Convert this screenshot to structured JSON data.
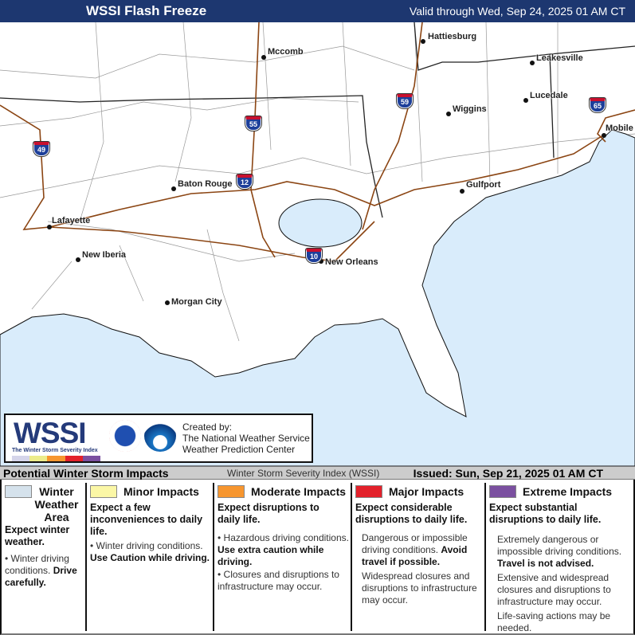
{
  "header": {
    "title": "WSSI Flash Freeze",
    "valid": "Valid through Wed, Sep 24, 2025 01 AM CT",
    "color": "#1d3770"
  },
  "map": {
    "water_color": "#d9ecfb",
    "road_color": "#8b4513",
    "cities": [
      "Hattiesburg",
      "Mccomb",
      "Leakesville",
      "Lucedale",
      "Wiggins",
      "Mobile",
      "Baton Rouge",
      "Gulfport",
      "Lafayette",
      "New Iberia",
      "New Orleans",
      "Morgan City"
    ],
    "interstates": [
      "49",
      "55",
      "12",
      "59",
      "65",
      "10"
    ]
  },
  "logo": {
    "wordmark": "WSSI",
    "tagline": "The Winter Storm Severity Index",
    "created_by": "Created by:",
    "org1": "The National Weather Service",
    "org2": "Weather Prediction Center",
    "seal1": "National Weather Service",
    "seal2": "NOAA"
  },
  "footer": {
    "left": "Potential Winter Storm Impacts",
    "center": "Winter Storm Severity Index (WSSI)",
    "issued": "Issued: Sun, Sep 21, 2025 01 AM CT"
  },
  "legend": [
    {
      "title": "Winter Weather Area",
      "color": "#d5e2ec",
      "summary": "Expect winter weather.",
      "b1": "Winter driving conditions.",
      "b1b": "Drive carefully."
    },
    {
      "title": "Minor Impacts",
      "color": "#fbf7a6",
      "summary": "Expect a few inconveniences to daily life.",
      "b1": "Winter driving conditions.",
      "b1b": "Use Caution while driving."
    },
    {
      "title": "Moderate Impacts",
      "color": "#f7962f",
      "summary": "Expect disruptions to daily life.",
      "b1": "Hazardous driving conditions.",
      "b1b": "Use extra caution while driving.",
      "b2": "Closures and disruptions to infrastructure may occur."
    },
    {
      "title": "Major Impacts",
      "color": "#e3212b",
      "summary": "Expect considerable disruptions to daily life.",
      "b1": "Dangerous or impossible driving conditions.",
      "b1b": "Avoid travel if possible.",
      "b2": "Widespread closures and disruptions to infrastructure may occur."
    },
    {
      "title": "Extreme Impacts",
      "color": "#7b50a0",
      "summary": "Expect substantial disruptions to daily life.",
      "b1": "Extremely dangerous or impossible driving conditions.",
      "b1b": "Travel is not advised.",
      "b2": "Extensive and widespread closures and disruptions to infrastructure may occur.",
      "b3": "Life-saving actions may be needed."
    }
  ]
}
